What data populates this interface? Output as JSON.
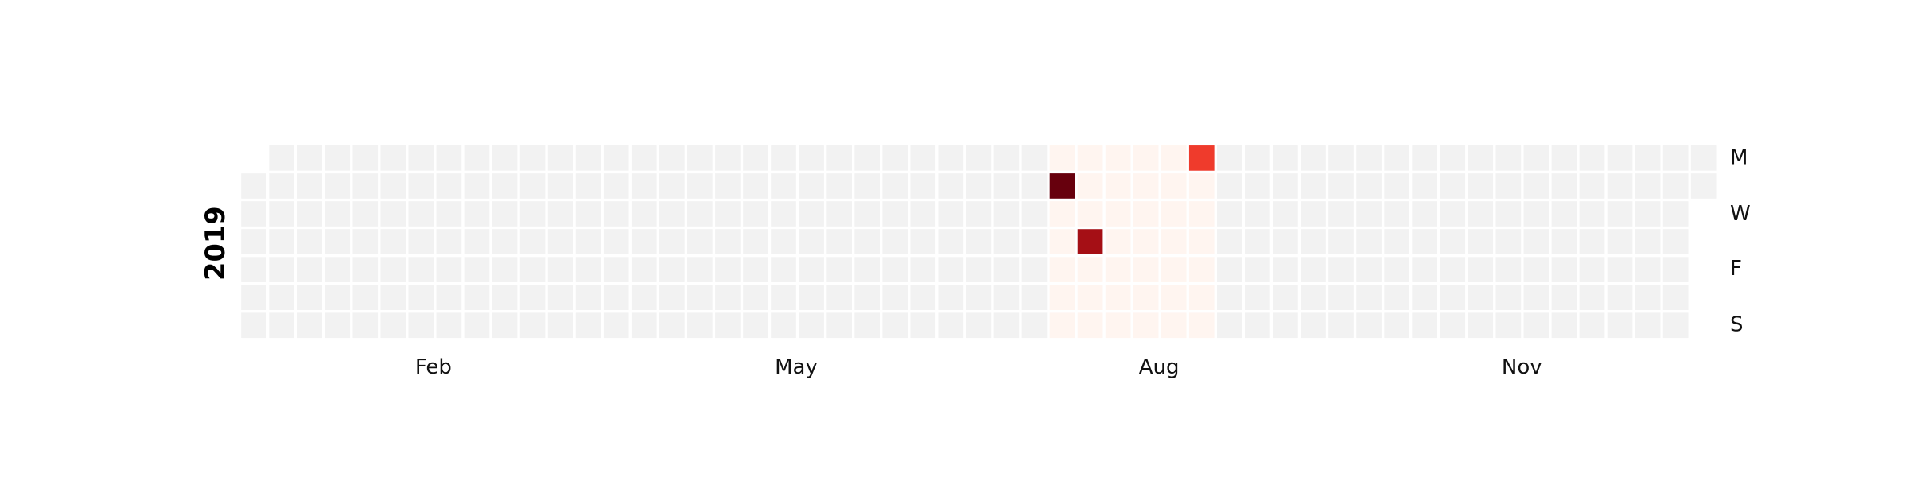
{
  "chart_data": {
    "type": "heatmap",
    "subtype": "calendar",
    "year_label": "2019",
    "month_tick_labels": [
      "Feb",
      "May",
      "Aug",
      "Nov"
    ],
    "weekday_tick_labels": [
      "M",
      "W",
      "F",
      "S"
    ],
    "colors": {
      "empty": "#f2f2f2",
      "zero": "#fff5f0",
      "scale": [
        "#fff5f0",
        "#fee0d2",
        "#fcbba1",
        "#fc9272",
        "#fb6a4a",
        "#ef3b2c",
        "#cb181d",
        "#a50f15",
        "#67000d"
      ],
      "gap": "#ffffff"
    },
    "layout_notes": "weeks run left→right, weekdays Mon→Sun top→bottom",
    "first_weekday_of_year": "Tue",
    "weeks": 53,
    "zero_value_range": [
      "2019-07-22",
      "2019-09-01"
    ],
    "values": [
      {
        "date": "2019-07-23",
        "value": 9
      },
      {
        "date": "2019-08-01",
        "value": 8
      },
      {
        "date": "2019-08-26",
        "value": 6
      }
    ],
    "vmin": 0,
    "vmax": 9
  }
}
